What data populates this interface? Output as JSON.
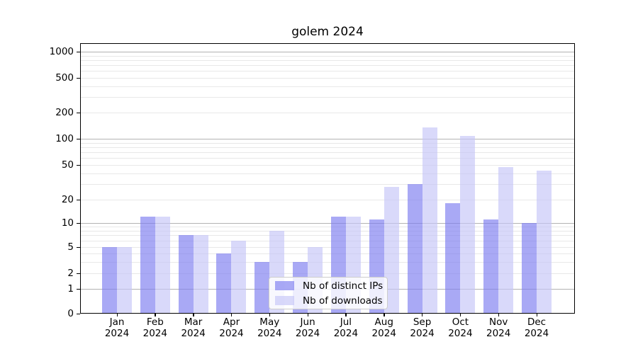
{
  "title": "golem 2024",
  "legend": {
    "position": "lower center",
    "items": [
      {
        "label": "Nb of distinct IPs",
        "color": "rgba(124,124,240,0.66)"
      },
      {
        "label": "Nb of downloads",
        "color": "rgba(197,197,247,0.66)"
      }
    ]
  },
  "chart_data": {
    "type": "bar",
    "title": "golem 2024",
    "categories": [
      "Jan 2024",
      "Feb 2024",
      "Mar 2024",
      "Apr 2024",
      "May 2024",
      "Jun 2024",
      "Jul 2024",
      "Aug 2024",
      "Sep 2024",
      "Oct 2024",
      "Nov 2024",
      "Dec 2024"
    ],
    "series": [
      {
        "name": "Nb of distinct IPs",
        "color": "rgba(124,124,240,0.66)",
        "values": [
          5,
          12,
          7,
          4,
          3,
          3,
          12,
          11,
          30,
          18,
          11,
          10
        ]
      },
      {
        "name": "Nb of downloads",
        "color": "rgba(197,197,247,0.66)",
        "values": [
          5,
          12,
          7,
          6,
          8,
          5,
          12,
          28,
          135,
          108,
          47,
          43
        ]
      }
    ],
    "xlabel": "",
    "ylabel": "",
    "y_axis": {
      "scale": "symlog",
      "ylim": [
        0,
        1400
      ],
      "tick_labels": [
        0,
        1,
        2,
        5,
        10,
        20,
        50,
        100,
        200,
        500,
        1000
      ],
      "major_gridlines": [
        1,
        10,
        100,
        1000
      ],
      "minor_gridlines": [
        2,
        3,
        4,
        5,
        6,
        7,
        8,
        9,
        20,
        30,
        40,
        50,
        60,
        70,
        80,
        90,
        200,
        300,
        400,
        500,
        600,
        700,
        800,
        900
      ]
    },
    "grid": true,
    "legend_position": "lower center"
  }
}
